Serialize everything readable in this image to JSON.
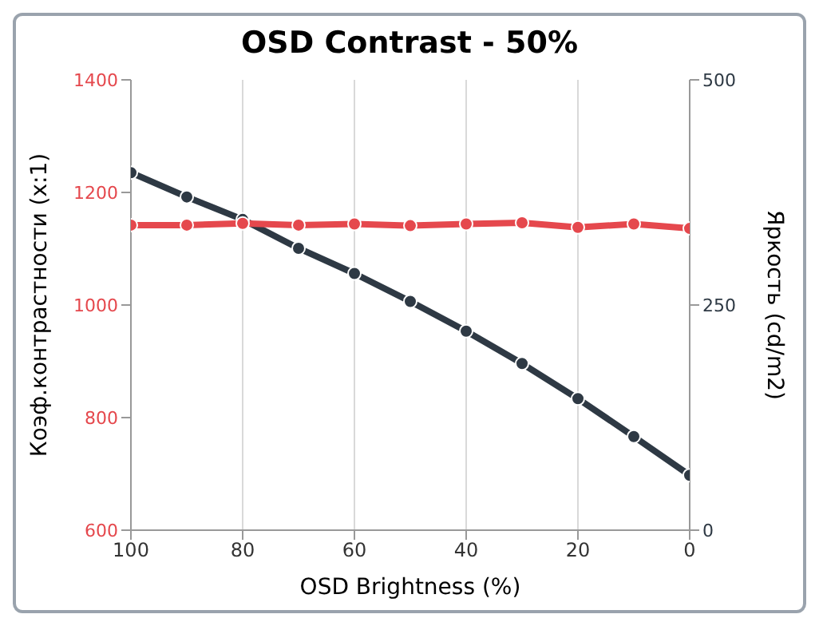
{
  "chart_data": {
    "type": "line",
    "title": "OSD Contrast - 50%",
    "xlabel": "OSD Brightness (%)",
    "ylabel": "Коэф.контрастности (x:1)",
    "y2label": "Яркость (cd/m2)",
    "x": [
      100,
      90,
      80,
      70,
      60,
      50,
      40,
      30,
      20,
      10,
      0
    ],
    "series": [
      {
        "color": "#e5484d",
        "values": [
          1142,
          1142,
          1145,
          1142,
          1144,
          1141,
          1144,
          1146,
          1138,
          1144,
          1136
        ]
      },
      {
        "color": "#2e3944",
        "axis": "y2",
        "values": [
          397,
          370,
          345,
          313,
          285,
          254,
          221,
          185,
          146,
          104,
          61
        ]
      }
    ],
    "xlim": [
      100,
      0
    ],
    "xticks": [
      100,
      80,
      60,
      40,
      20,
      0
    ],
    "ylim": [
      600,
      1400
    ],
    "yticks": [
      600,
      800,
      1000,
      1200,
      1400
    ],
    "y2lim": [
      0,
      500
    ],
    "y2ticks": [
      0,
      250,
      500
    ],
    "grid": "x",
    "marker": "circle",
    "line_style": "solid"
  }
}
